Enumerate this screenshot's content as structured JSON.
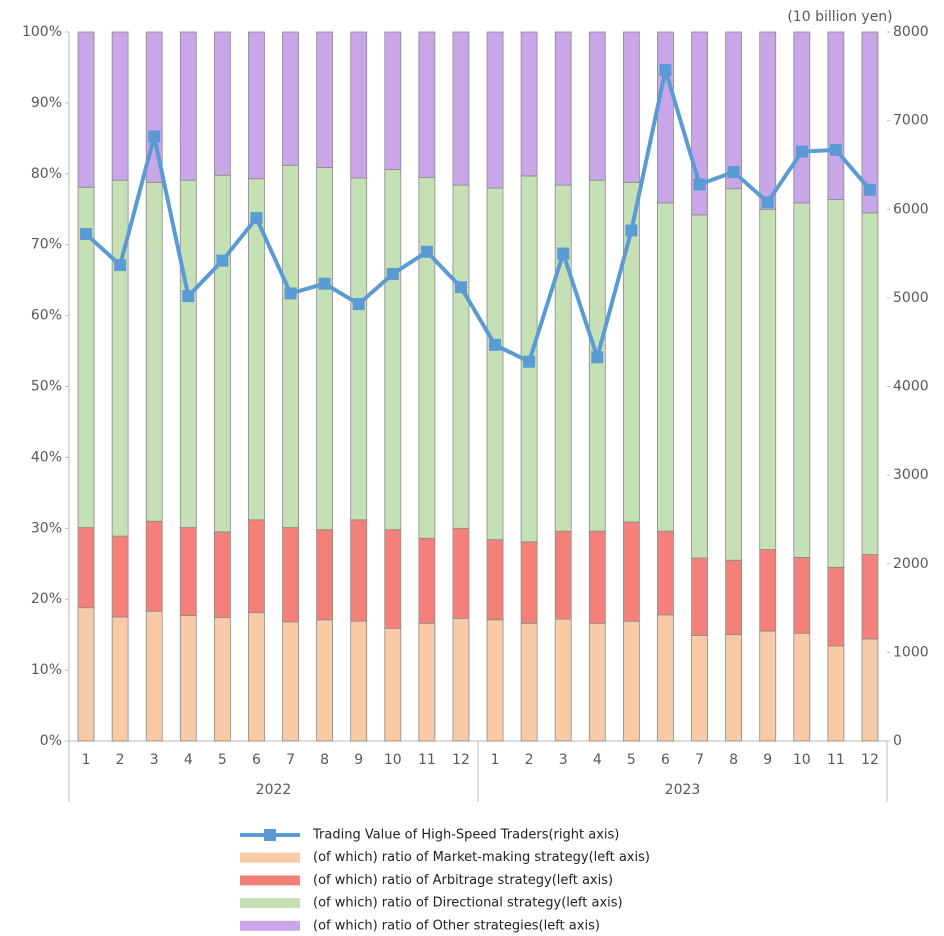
{
  "chart_data": {
    "type": "bar",
    "stacked": true,
    "y2_label": "(10 billion yen)",
    "categories": [
      "1",
      "2",
      "3",
      "4",
      "5",
      "6",
      "7",
      "8",
      "9",
      "10",
      "11",
      "12",
      "1",
      "2",
      "3",
      "4",
      "5",
      "6",
      "7",
      "8",
      "9",
      "10",
      "11",
      "12"
    ],
    "groups": [
      "2022",
      "2023"
    ],
    "ylim": [
      0,
      100
    ],
    "yticks": [
      {
        "value": 0,
        "label": "0%"
      },
      {
        "value": 10,
        "label": "10%"
      },
      {
        "value": 20,
        "label": "20%"
      },
      {
        "value": 30,
        "label": "30%"
      },
      {
        "value": 40,
        "label": "40%"
      },
      {
        "value": 50,
        "label": "50%"
      },
      {
        "value": 60,
        "label": "60%"
      },
      {
        "value": 70,
        "label": "70%"
      },
      {
        "value": 80,
        "label": "80%"
      },
      {
        "value": 90,
        "label": "90%"
      },
      {
        "value": 100,
        "label": "100%"
      }
    ],
    "y2lim": [
      0,
      8000
    ],
    "y2ticks": [
      0,
      1000,
      2000,
      3000,
      4000,
      5000,
      6000,
      7000,
      8000
    ],
    "grid": false,
    "legend": "bottom",
    "series": [
      {
        "name": "Trading Value of High-Speed Traders(right axis)",
        "type": "line",
        "axis": "y2",
        "color": "#5b9bd5",
        "values": [
          5720,
          5370,
          6820,
          5020,
          5420,
          5900,
          5050,
          5160,
          4930,
          5270,
          5520,
          5120,
          4470,
          4280,
          5500,
          4330,
          5760,
          7570,
          6280,
          6420,
          6080,
          6650,
          6670,
          6220
        ]
      },
      {
        "name": "(of which) ratio of Market-making strategy(left axis)",
        "type": "bar",
        "axis": "y",
        "color": "#f8cba6",
        "values": [
          18.8,
          17.5,
          18.3,
          17.7,
          17.4,
          18.1,
          16.8,
          17.1,
          16.9,
          15.9,
          16.6,
          17.3,
          17.1,
          16.6,
          17.2,
          16.6,
          16.9,
          17.8,
          14.9,
          15.0,
          15.5,
          15.2,
          13.4,
          14.4
        ]
      },
      {
        "name": "(of which) ratio of Arbitrage strategy(left axis)",
        "type": "bar",
        "axis": "y",
        "color": "#f4807a",
        "values": [
          11.3,
          11.4,
          12.7,
          12.4,
          12.1,
          13.1,
          13.3,
          12.7,
          14.3,
          13.9,
          12.0,
          12.7,
          11.3,
          11.5,
          12.4,
          13.0,
          14.0,
          11.8,
          10.9,
          10.5,
          11.5,
          10.7,
          11.1,
          11.9
        ]
      },
      {
        "name": "(of which) ratio of Directional strategy(left axis)",
        "type": "bar",
        "axis": "y",
        "color": "#c5e0b4",
        "values": [
          48.0,
          50.2,
          47.8,
          49.0,
          50.3,
          48.1,
          51.1,
          51.1,
          48.2,
          50.8,
          50.9,
          48.4,
          49.6,
          51.6,
          48.8,
          49.5,
          47.9,
          46.3,
          48.4,
          52.4,
          48.0,
          50.0,
          51.9,
          48.2
        ]
      },
      {
        "name": "(of which) ratio of Other strategies(left axis)",
        "type": "bar",
        "axis": "y",
        "color": "#c9a6e8",
        "values": [
          21.9,
          20.9,
          21.2,
          20.9,
          20.2,
          20.7,
          18.8,
          19.1,
          20.6,
          19.4,
          20.5,
          21.6,
          22.0,
          20.3,
          21.6,
          20.9,
          21.2,
          24.1,
          25.8,
          22.1,
          25.0,
          24.1,
          23.6,
          25.5
        ]
      }
    ]
  }
}
